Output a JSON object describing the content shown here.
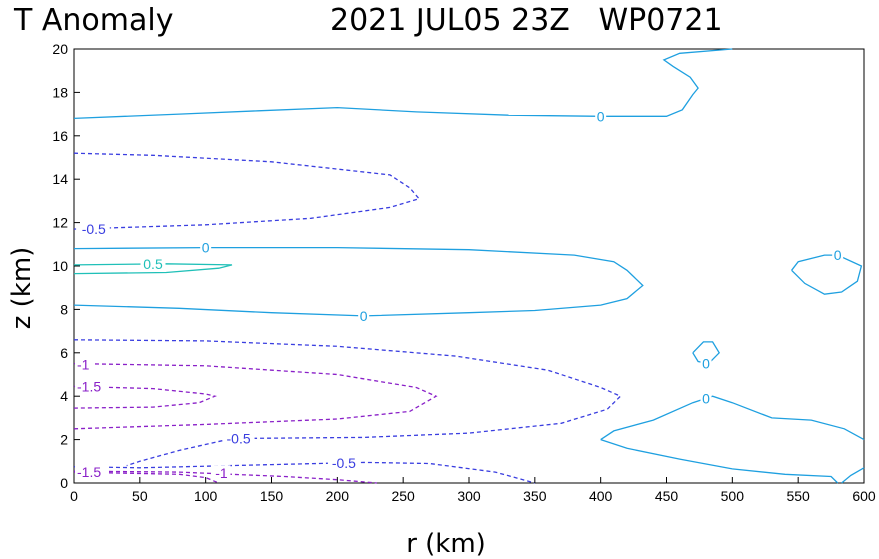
{
  "chart_data": {
    "type": "contour",
    "title_left": "T Anomaly",
    "title_right": "2021 JUL05 23Z   WP0721",
    "xlabel": "r (km)",
    "ylabel": "z (km)",
    "xlim": [
      0,
      600
    ],
    "ylim": [
      0,
      20
    ],
    "xticks": [
      "0",
      "50",
      "100",
      "150",
      "200",
      "250",
      "300",
      "350",
      "400",
      "450",
      "500",
      "550",
      "600"
    ],
    "yticks": [
      "0",
      "2",
      "4",
      "6",
      "8",
      "10",
      "12",
      "14",
      "16",
      "18",
      "20"
    ],
    "colors": {
      "zero": "#1fa0e0",
      "neg05": "#3a3ee0",
      "pos05": "#20c0b8",
      "neg1": "#8a20c8"
    },
    "contours": [
      {
        "level": "0",
        "color": "zero",
        "dashed": false,
        "points": [
          [
            0,
            16.8
          ],
          [
            80,
            17.0
          ],
          [
            140,
            17.15
          ],
          [
            200,
            17.3
          ],
          [
            260,
            17.1
          ],
          [
            330,
            16.95
          ],
          [
            400,
            16.9
          ],
          [
            430,
            16.9
          ],
          [
            450,
            16.9
          ],
          [
            462,
            17.2
          ],
          [
            470,
            17.9
          ],
          [
            474,
            18.2
          ],
          [
            468,
            18.7
          ],
          [
            455,
            19.2
          ],
          [
            448,
            19.5
          ],
          [
            460,
            19.8
          ],
          [
            500,
            20.0
          ]
        ]
      },
      {
        "level": "0",
        "color": "zero",
        "dashed": false,
        "points": [
          [
            0,
            10.8
          ],
          [
            100,
            10.85
          ],
          [
            200,
            10.85
          ],
          [
            300,
            10.75
          ],
          [
            380,
            10.5
          ],
          [
            410,
            10.2
          ],
          [
            420,
            9.8
          ],
          [
            432,
            9.1
          ],
          [
            420,
            8.5
          ],
          [
            400,
            8.2
          ],
          [
            350,
            7.95
          ],
          [
            300,
            7.85
          ],
          [
            220,
            7.7
          ],
          [
            150,
            7.85
          ],
          [
            80,
            8.05
          ],
          [
            0,
            8.2
          ]
        ]
      },
      {
        "level": "0",
        "color": "zero",
        "dashed": false,
        "points": [
          [
            545,
            9.8
          ],
          [
            550,
            10.2
          ],
          [
            570,
            10.5
          ],
          [
            580,
            10.5
          ],
          [
            598,
            10.0
          ],
          [
            595,
            9.3
          ],
          [
            583,
            8.8
          ],
          [
            570,
            8.7
          ],
          [
            555,
            9.2
          ],
          [
            545,
            9.8
          ]
        ]
      },
      {
        "level": "0",
        "color": "zero",
        "dashed": false,
        "points": [
          [
            470,
            6.0
          ],
          [
            478,
            6.5
          ],
          [
            485,
            6.5
          ],
          [
            490,
            6.0
          ],
          [
            482,
            5.5
          ],
          [
            474,
            5.6
          ],
          [
            470,
            6.0
          ]
        ]
      },
      {
        "level": "0",
        "color": "zero",
        "dashed": false,
        "points": [
          [
            400,
            2.0
          ],
          [
            410,
            2.4
          ],
          [
            440,
            2.9
          ],
          [
            470,
            3.7
          ],
          [
            485,
            4.0
          ],
          [
            500,
            3.7
          ],
          [
            530,
            3.0
          ],
          [
            560,
            2.9
          ],
          [
            585,
            2.5
          ],
          [
            600,
            2.0
          ]
        ]
      },
      {
        "level": "0",
        "color": "zero",
        "dashed": false,
        "points": [
          [
            400,
            2.0
          ],
          [
            420,
            1.6
          ],
          [
            460,
            1.1
          ],
          [
            500,
            0.65
          ],
          [
            540,
            0.4
          ],
          [
            575,
            0.3
          ],
          [
            580,
            0.0
          ]
        ]
      },
      {
        "level": "0",
        "color": "zero",
        "dashed": false,
        "points": [
          [
            583,
            0.0
          ],
          [
            590,
            0.35
          ],
          [
            600,
            0.7
          ]
        ]
      },
      {
        "level": "-0.5",
        "color": "neg05",
        "dashed": true,
        "points": [
          [
            0,
            15.2
          ],
          [
            60,
            15.1
          ],
          [
            150,
            14.8
          ],
          [
            240,
            14.2
          ],
          [
            255,
            13.6
          ],
          [
            262,
            13.1
          ],
          [
            240,
            12.7
          ],
          [
            180,
            12.2
          ],
          [
            100,
            11.9
          ],
          [
            0,
            11.7
          ]
        ]
      },
      {
        "level": "0.5",
        "color": "pos05",
        "dashed": false,
        "points": [
          [
            0,
            10.05
          ],
          [
            70,
            10.1
          ],
          [
            120,
            10.05
          ],
          [
            110,
            9.9
          ],
          [
            70,
            9.7
          ],
          [
            0,
            9.65
          ]
        ]
      },
      {
        "level": "-0.5",
        "color": "neg05",
        "dashed": true,
        "points": [
          [
            0,
            6.6
          ],
          [
            100,
            6.55
          ],
          [
            200,
            6.3
          ],
          [
            290,
            5.85
          ],
          [
            360,
            5.2
          ],
          [
            400,
            4.4
          ],
          [
            415,
            4.0
          ],
          [
            405,
            3.4
          ],
          [
            370,
            2.75
          ],
          [
            300,
            2.3
          ],
          [
            220,
            2.1
          ],
          [
            120,
            2.05
          ],
          [
            80,
            1.5
          ],
          [
            50,
            1.0
          ],
          [
            40,
            0.8
          ]
        ]
      },
      {
        "level": "-0.5",
        "color": "neg05",
        "dashed": true,
        "points": [
          [
            0,
            0.75
          ],
          [
            50,
            0.7
          ],
          [
            150,
            0.85
          ],
          [
            220,
            0.95
          ],
          [
            270,
            0.9
          ],
          [
            320,
            0.5
          ],
          [
            350,
            0.0
          ]
        ]
      },
      {
        "level": "-1",
        "color": "neg1",
        "dashed": true,
        "points": [
          [
            0,
            5.5
          ],
          [
            100,
            5.4
          ],
          [
            200,
            5.0
          ],
          [
            260,
            4.4
          ],
          [
            275,
            4.0
          ],
          [
            255,
            3.3
          ],
          [
            200,
            2.95
          ],
          [
            100,
            2.7
          ],
          [
            0,
            2.5
          ]
        ]
      },
      {
        "level": "-1.5",
        "color": "neg1",
        "dashed": true,
        "points": [
          [
            0,
            4.45
          ],
          [
            60,
            4.35
          ],
          [
            100,
            4.1
          ],
          [
            107,
            4.0
          ],
          [
            95,
            3.7
          ],
          [
            60,
            3.5
          ],
          [
            0,
            3.45
          ]
        ]
      },
      {
        "level": "-1",
        "color": "neg1",
        "dashed": true,
        "points": [
          [
            0,
            0.55
          ],
          [
            80,
            0.5
          ],
          [
            160,
            0.3
          ],
          [
            200,
            0.15
          ],
          [
            230,
            0.0
          ]
        ]
      },
      {
        "level": "-1.5",
        "color": "neg1",
        "dashed": true,
        "points": [
          [
            0,
            0.5
          ],
          [
            40,
            0.45
          ],
          [
            80,
            0.4
          ],
          [
            100,
            0.25
          ],
          [
            110,
            0.0
          ]
        ]
      }
    ],
    "labels": [
      {
        "text": "0",
        "x": 400,
        "y": 16.9,
        "color": "zero"
      },
      {
        "text": "0",
        "x": 100,
        "y": 10.85,
        "color": "zero"
      },
      {
        "text": "0",
        "x": 220,
        "y": 7.7,
        "color": "zero"
      },
      {
        "text": "0",
        "x": 580,
        "y": 10.5,
        "color": "zero"
      },
      {
        "text": "0",
        "x": 480,
        "y": 5.5,
        "color": "zero"
      },
      {
        "text": "0",
        "x": 480,
        "y": 3.9,
        "color": "zero"
      },
      {
        "text": "-0.5",
        "x": 15,
        "y": 11.7,
        "color": "neg05"
      },
      {
        "text": "0.5",
        "x": 60,
        "y": 10.1,
        "color": "pos05"
      },
      {
        "text": "-0.5",
        "x": 125,
        "y": 2.05,
        "color": "neg05"
      },
      {
        "text": "-0.5",
        "x": 205,
        "y": 0.92,
        "color": "neg05"
      },
      {
        "text": "-1",
        "x": 0,
        "y": 5.45,
        "color": "neg1"
      },
      {
        "text": "-1.5",
        "x": 0,
        "y": 4.45,
        "color": "neg1"
      },
      {
        "text": "-1.5",
        "x": 0,
        "y": 0.5,
        "color": "neg1"
      },
      {
        "text": "-1",
        "x": 112,
        "y": 0.45,
        "color": "neg1"
      }
    ]
  }
}
